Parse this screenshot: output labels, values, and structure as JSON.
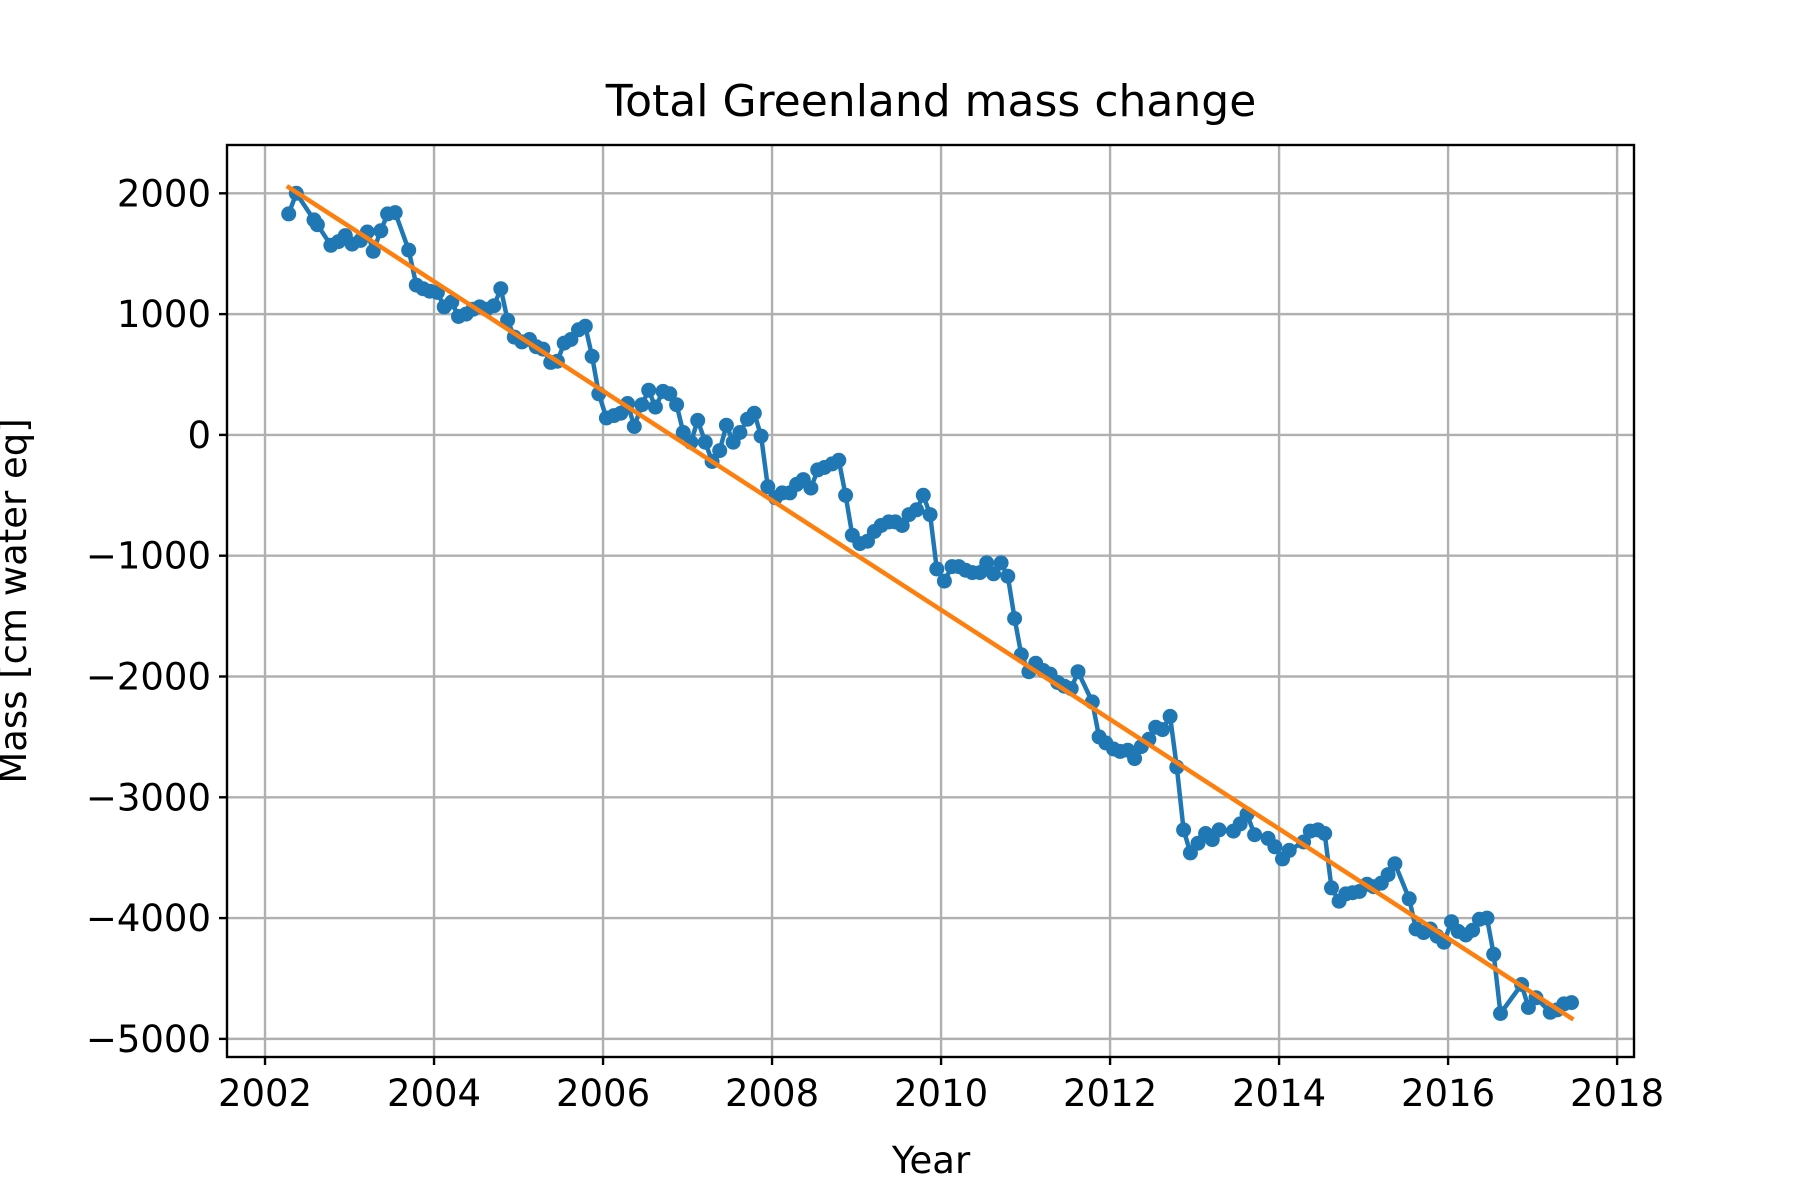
{
  "chart_data": {
    "type": "line",
    "title": "Total Greenland mass change",
    "xlabel": "Year",
    "ylabel": "Mass [cm water eq]",
    "xlim": [
      2001.55,
      2018.2
    ],
    "ylim": [
      -5150,
      2400
    ],
    "xticks": [
      2002,
      2004,
      2006,
      2008,
      2010,
      2012,
      2014,
      2016,
      2018
    ],
    "yticks": [
      2000,
      1000,
      0,
      -1000,
      -2000,
      -3000,
      -4000,
      -5000
    ],
    "xtick_labels": [
      "2002",
      "2004",
      "2006",
      "2008",
      "2010",
      "2012",
      "2014",
      "2016",
      "2018"
    ],
    "ytick_labels": [
      "2000",
      "1000",
      "0",
      "−1000",
      "−2000",
      "−3000",
      "−4000",
      "−5000"
    ],
    "grid": true,
    "series": [
      {
        "kind": "line-with-markers",
        "color": "#1f77b4",
        "points": [
          [
            2002.28,
            1830
          ],
          [
            2002.37,
            2000
          ],
          [
            2002.58,
            1780
          ],
          [
            2002.62,
            1740
          ],
          [
            2002.78,
            1570
          ],
          [
            2002.87,
            1600
          ],
          [
            2002.95,
            1650
          ],
          [
            2003.03,
            1580
          ],
          [
            2003.13,
            1610
          ],
          [
            2003.21,
            1680
          ],
          [
            2003.28,
            1520
          ],
          [
            2003.37,
            1690
          ],
          [
            2003.45,
            1830
          ],
          [
            2003.54,
            1840
          ],
          [
            2003.7,
            1530
          ],
          [
            2003.79,
            1240
          ],
          [
            2003.87,
            1210
          ],
          [
            2003.95,
            1190
          ],
          [
            2004.04,
            1180
          ],
          [
            2004.12,
            1060
          ],
          [
            2004.21,
            1100
          ],
          [
            2004.29,
            980
          ],
          [
            2004.38,
            1000
          ],
          [
            2004.46,
            1040
          ],
          [
            2004.54,
            1060
          ],
          [
            2004.62,
            1040
          ],
          [
            2004.71,
            1070
          ],
          [
            2004.79,
            1210
          ],
          [
            2004.87,
            950
          ],
          [
            2004.95,
            810
          ],
          [
            2005.04,
            770
          ],
          [
            2005.13,
            790
          ],
          [
            2005.21,
            730
          ],
          [
            2005.29,
            710
          ],
          [
            2005.38,
            600
          ],
          [
            2005.46,
            610
          ],
          [
            2005.54,
            760
          ],
          [
            2005.62,
            790
          ],
          [
            2005.71,
            870
          ],
          [
            2005.79,
            900
          ],
          [
            2005.87,
            650
          ],
          [
            2005.95,
            340
          ],
          [
            2006.04,
            140
          ],
          [
            2006.13,
            160
          ],
          [
            2006.21,
            180
          ],
          [
            2006.29,
            260
          ],
          [
            2006.37,
            70
          ],
          [
            2006.46,
            250
          ],
          [
            2006.54,
            370
          ],
          [
            2006.62,
            230
          ],
          [
            2006.71,
            360
          ],
          [
            2006.79,
            340
          ],
          [
            2006.87,
            250
          ],
          [
            2006.95,
            20
          ],
          [
            2007.04,
            -60
          ],
          [
            2007.12,
            120
          ],
          [
            2007.21,
            -60
          ],
          [
            2007.29,
            -220
          ],
          [
            2007.38,
            -130
          ],
          [
            2007.46,
            80
          ],
          [
            2007.54,
            -60
          ],
          [
            2007.62,
            20
          ],
          [
            2007.71,
            130
          ],
          [
            2007.79,
            180
          ],
          [
            2007.87,
            -10
          ],
          [
            2007.95,
            -430
          ],
          [
            2008.04,
            -520
          ],
          [
            2008.12,
            -480
          ],
          [
            2008.21,
            -480
          ],
          [
            2008.29,
            -410
          ],
          [
            2008.37,
            -370
          ],
          [
            2008.46,
            -440
          ],
          [
            2008.54,
            -290
          ],
          [
            2008.62,
            -270
          ],
          [
            2008.71,
            -240
          ],
          [
            2008.79,
            -210
          ],
          [
            2008.87,
            -500
          ],
          [
            2008.95,
            -830
          ],
          [
            2009.04,
            -900
          ],
          [
            2009.13,
            -880
          ],
          [
            2009.21,
            -800
          ],
          [
            2009.29,
            -750
          ],
          [
            2009.38,
            -720
          ],
          [
            2009.46,
            -720
          ],
          [
            2009.54,
            -750
          ],
          [
            2009.62,
            -660
          ],
          [
            2009.71,
            -620
          ],
          [
            2009.79,
            -500
          ],
          [
            2009.87,
            -660
          ],
          [
            2009.95,
            -1110
          ],
          [
            2010.04,
            -1210
          ],
          [
            2010.13,
            -1090
          ],
          [
            2010.21,
            -1090
          ],
          [
            2010.29,
            -1120
          ],
          [
            2010.37,
            -1140
          ],
          [
            2010.46,
            -1140
          ],
          [
            2010.54,
            -1060
          ],
          [
            2010.62,
            -1150
          ],
          [
            2010.71,
            -1060
          ],
          [
            2010.79,
            -1170
          ],
          [
            2010.87,
            -1520
          ],
          [
            2010.95,
            -1820
          ],
          [
            2011.04,
            -1960
          ],
          [
            2011.12,
            -1890
          ],
          [
            2011.21,
            -1950
          ],
          [
            2011.29,
            -1980
          ],
          [
            2011.38,
            -2050
          ],
          [
            2011.46,
            -2080
          ],
          [
            2011.54,
            -2100
          ],
          [
            2011.62,
            -1960
          ],
          [
            2011.79,
            -2210
          ],
          [
            2011.87,
            -2500
          ],
          [
            2011.95,
            -2550
          ],
          [
            2012.04,
            -2600
          ],
          [
            2012.12,
            -2620
          ],
          [
            2012.21,
            -2610
          ],
          [
            2012.29,
            -2680
          ],
          [
            2012.37,
            -2580
          ],
          [
            2012.46,
            -2520
          ],
          [
            2012.54,
            -2420
          ],
          [
            2012.62,
            -2440
          ],
          [
            2012.71,
            -2330
          ],
          [
            2012.79,
            -2750
          ],
          [
            2012.87,
            -3270
          ],
          [
            2012.95,
            -3460
          ],
          [
            2013.04,
            -3380
          ],
          [
            2013.13,
            -3300
          ],
          [
            2013.21,
            -3350
          ],
          [
            2013.29,
            -3270
          ],
          [
            2013.46,
            -3280
          ],
          [
            2013.54,
            -3220
          ],
          [
            2013.62,
            -3140
          ],
          [
            2013.71,
            -3310
          ],
          [
            2013.87,
            -3340
          ],
          [
            2013.95,
            -3410
          ],
          [
            2014.04,
            -3510
          ],
          [
            2014.12,
            -3440
          ],
          [
            2014.29,
            -3370
          ],
          [
            2014.37,
            -3280
          ],
          [
            2014.46,
            -3270
          ],
          [
            2014.54,
            -3300
          ],
          [
            2014.62,
            -3750
          ],
          [
            2014.71,
            -3860
          ],
          [
            2014.79,
            -3800
          ],
          [
            2014.87,
            -3790
          ],
          [
            2014.95,
            -3780
          ],
          [
            2015.04,
            -3720
          ],
          [
            2015.12,
            -3740
          ],
          [
            2015.21,
            -3710
          ],
          [
            2015.29,
            -3640
          ],
          [
            2015.37,
            -3550
          ],
          [
            2015.54,
            -3840
          ],
          [
            2015.62,
            -4090
          ],
          [
            2015.71,
            -4120
          ],
          [
            2015.79,
            -4090
          ],
          [
            2015.87,
            -4150
          ],
          [
            2015.95,
            -4200
          ],
          [
            2016.04,
            -4030
          ],
          [
            2016.12,
            -4110
          ],
          [
            2016.21,
            -4140
          ],
          [
            2016.29,
            -4100
          ],
          [
            2016.37,
            -4010
          ],
          [
            2016.46,
            -4000
          ],
          [
            2016.54,
            -4300
          ],
          [
            2016.62,
            -4790
          ],
          [
            2016.87,
            -4550
          ],
          [
            2016.95,
            -4740
          ],
          [
            2017.04,
            -4660
          ],
          [
            2017.21,
            -4780
          ],
          [
            2017.29,
            -4760
          ],
          [
            2017.37,
            -4710
          ],
          [
            2017.46,
            -4700
          ]
        ]
      },
      {
        "kind": "trend-line",
        "color": "#ff7f0e",
        "points": [
          [
            2002.28,
            2050
          ],
          [
            2017.46,
            -4830
          ]
        ]
      }
    ]
  }
}
